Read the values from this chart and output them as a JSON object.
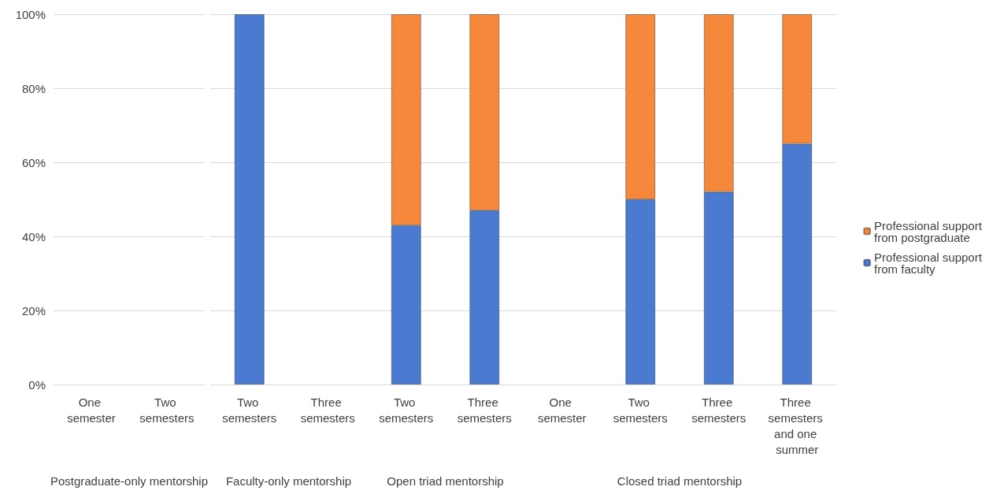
{
  "chart_data": [
    {
      "type": "bar",
      "stacked": true,
      "xlabel": "Postgraduate-only mentorship",
      "categories": [
        "One semester",
        "Two semesters"
      ],
      "series": [
        {
          "color": "#4a7bd0",
          "values": [
            null,
            null
          ]
        },
        {
          "color": "#f5883a",
          "values": [
            null,
            null
          ]
        }
      ],
      "ylim": [
        0,
        100
      ],
      "yticks": [
        {
          "value": 0,
          "label": "0%"
        },
        {
          "value": 20,
          "label": "20%"
        },
        {
          "value": 40,
          "label": "40%"
        },
        {
          "value": 60,
          "label": "60%"
        },
        {
          "value": 80,
          "label": "80%"
        },
        {
          "value": 100,
          "label": "100%"
        }
      ],
      "grid": "y",
      "legend": false
    },
    {
      "type": "bar",
      "stacked": true,
      "xlabel": "Faculty-only mentorship",
      "categories": [
        "Two semesters",
        "Three semesters"
      ],
      "series": [
        {
          "color": "#4a7bd0",
          "values": [
            100,
            null
          ]
        },
        {
          "color": "#f5883a",
          "values": [
            null,
            null
          ]
        }
      ],
      "ylim": [
        0,
        100
      ],
      "yticks": [
        0,
        20,
        40,
        60,
        80,
        100
      ],
      "grid": "y",
      "legend": false,
      "tick_labels": "x"
    },
    {
      "type": "bar",
      "stacked": true,
      "xlabel": "Open triad mentorship",
      "categories": [
        "Two semesters",
        "Three semesters"
      ],
      "series": [
        {
          "color": "#4a7bd0",
          "values": [
            43,
            47
          ]
        },
        {
          "color": "#f5883a",
          "values": [
            57,
            53
          ]
        }
      ],
      "ylim": [
        0,
        100
      ],
      "yticks": [
        0,
        20,
        40,
        60,
        80,
        100
      ],
      "grid": "y",
      "legend": false,
      "tick_labels": "x"
    },
    {
      "type": "bar",
      "stacked": true,
      "xlabel": "Closed triad mentorship",
      "categories": [
        "One semester",
        "Two semesters",
        "Three semesters",
        "Three semesters and one summer"
      ],
      "series": [
        {
          "name": "Professional support from faculty",
          "color": "#4a7bd0",
          "values": [
            null,
            50,
            52,
            65
          ]
        },
        {
          "name": "Professional support from postgraduate",
          "color": "#f5883a",
          "values": [
            null,
            50,
            48,
            35
          ]
        }
      ],
      "ylim": [
        0,
        100
      ],
      "yticks": [
        0,
        20,
        40,
        60,
        80,
        100
      ],
      "grid": "y",
      "legend": "right",
      "tick_labels": "x"
    }
  ]
}
